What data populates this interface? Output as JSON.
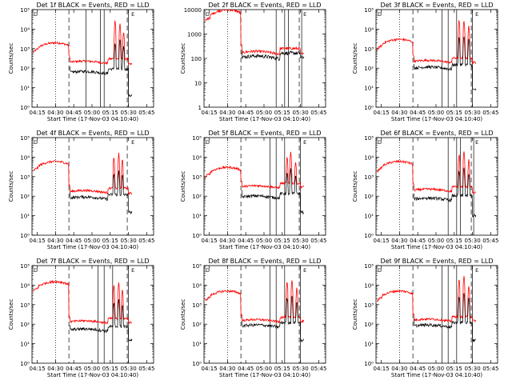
{
  "figure": {
    "series_colors": {
      "events": "#000000",
      "lld": "#ff0000"
    },
    "background": "#ffffff"
  },
  "chart_data": [
    {
      "type": "line",
      "title": "Det 1f BLACK = Events, RED = LLD",
      "xlabel": "Start Time (17-Nov-03 04:10:40)",
      "ylabel": "Counts/sec",
      "yscale": "log",
      "ylim": [
        1,
        100000
      ],
      "ytick_labels": [
        "10⁰",
        "10¹",
        "10²",
        "10³",
        "10⁴",
        "10⁵"
      ],
      "xticks": [
        "04:15",
        "04:30",
        "04:45",
        "05:00",
        "05:15",
        "05:30",
        "05:45"
      ],
      "corner_labels": [
        "D",
        "E"
      ],
      "markers": {
        "dotted": [
          "04:30"
        ],
        "dashed": [
          "04:41",
          "05:29"
        ],
        "solid": [
          "04:55",
          "05:07",
          "05:10",
          "05:30"
        ]
      },
      "events": {
        "base": 60,
        "pre_spike": null,
        "spikes": [
          {
            "t": "05:19",
            "v": 2000
          },
          {
            "t": "05:23",
            "v": 3000
          },
          {
            "t": "05:26",
            "v": 1500
          }
        ],
        "tail": 4
      },
      "lld": {
        "pre": 2000,
        "post": 200,
        "end": 160,
        "spikes": [
          {
            "t": "05:19",
            "v": 30000
          },
          {
            "t": "05:23",
            "v": 20000
          },
          {
            "t": "05:26",
            "v": 8000
          }
        ]
      }
    },
    {
      "type": "line",
      "title": "Det 2f BLACK = Events, RED = LLD",
      "xlabel": "Start Time (17-Nov-03 04:10:40)",
      "ylabel": "Counts/sec",
      "yscale": "log",
      "ylim": [
        1,
        10000
      ],
      "ytick_labels": [
        "1",
        "10",
        "100",
        "1000",
        "10000"
      ],
      "xticks": [
        "04:15",
        "04:30",
        "04:45",
        "05:00",
        "05:15",
        "05:30",
        "05:45"
      ],
      "corner_labels": [
        "D",
        "E"
      ],
      "markers": {
        "dotted": [
          "04:30"
        ],
        "dashed": [
          "04:41",
          "05:29"
        ],
        "solid": [
          "05:10",
          "05:17",
          "05:20",
          "05:31"
        ]
      },
      "events": {
        "base": 110,
        "pre_spike": null,
        "spikes": [],
        "tail": null
      },
      "lld": {
        "pre": 10000,
        "post": 170,
        "end": 150,
        "spikes": []
      }
    },
    {
      "type": "line",
      "title": "Det 3f BLACK = Events, RED = LLD",
      "xlabel": "Start Time (17-Nov-03 04:10:40)",
      "ylabel": "Counts/sec",
      "yscale": "log",
      "ylim": [
        1,
        100000
      ],
      "ytick_labels": [
        "10⁰",
        "10¹",
        "10²",
        "10³",
        "10⁴",
        "10⁵"
      ],
      "xticks": [
        "04:15",
        "04:30",
        "04:45",
        "05:00",
        "05:15",
        "05:30",
        "05:45"
      ],
      "corner_labels": [
        "D",
        "E"
      ],
      "markers": {
        "dotted": [
          "04:30"
        ],
        "dashed": [
          "04:41",
          "05:29"
        ],
        "solid": [
          "05:05",
          "05:10",
          "05:17",
          "05:30"
        ]
      },
      "events": {
        "base": 100,
        "pre_spike": null,
        "spikes": [
          {
            "t": "05:19",
            "v": 4000
          },
          {
            "t": "05:23",
            "v": 5000
          },
          {
            "t": "05:27",
            "v": 3000
          }
        ],
        "tail": 8
      },
      "lld": {
        "pre": 3000,
        "post": 220,
        "end": 200,
        "spikes": [
          {
            "t": "05:19",
            "v": 30000
          },
          {
            "t": "05:23",
            "v": 30000
          },
          {
            "t": "05:27",
            "v": 15000
          }
        ]
      }
    },
    {
      "type": "line",
      "title": "Det 4f BLACK = Events, RED = LLD",
      "xlabel": "Start Time (17-Nov-03 04:10:40)",
      "ylabel": "Counts/sec",
      "yscale": "log",
      "ylim": [
        1,
        100000
      ],
      "ytick_labels": [
        "10⁰",
        "10¹",
        "10²",
        "10³",
        "10⁴",
        "10⁵"
      ],
      "xticks": [
        "04:15",
        "04:30",
        "04:45",
        "05:00",
        "05:15",
        "05:30",
        "05:45"
      ],
      "corner_labels": [
        "D",
        "E"
      ],
      "markers": {
        "dotted": [
          "04:30"
        ],
        "dashed": [
          "04:41",
          "05:29"
        ],
        "solid": []
      },
      "events": {
        "base": 80,
        "pre_spike": null,
        "spikes": [
          {
            "t": "05:18",
            "v": 1500
          },
          {
            "t": "05:22",
            "v": 2000
          },
          {
            "t": "05:25",
            "v": 1200
          }
        ],
        "tail": 15
      },
      "lld": {
        "pre": 6000,
        "post": 170,
        "end": 140,
        "spikes": [
          {
            "t": "05:18",
            "v": 10000
          },
          {
            "t": "05:22",
            "v": 15000
          },
          {
            "t": "05:25",
            "v": 8000
          }
        ]
      }
    },
    {
      "type": "line",
      "title": "Det 5f BLACK = Events, RED = LLD",
      "xlabel": "Start Time (17-Nov-03 04:10:40)",
      "ylabel": "Counts/sec",
      "yscale": "log",
      "ylim": [
        1,
        100000
      ],
      "ytick_labels": [
        "10⁰",
        "10¹",
        "10²",
        "10³",
        "10⁴",
        "10⁵"
      ],
      "xticks": [
        "04:15",
        "04:30",
        "04:45",
        "05:00",
        "05:15",
        "05:30",
        "05:45"
      ],
      "corner_labels": [
        "D",
        "E"
      ],
      "markers": {
        "dotted": [
          "04:30"
        ],
        "dashed": [
          "04:41",
          "05:29"
        ],
        "solid": [
          "05:05",
          "05:10",
          "05:17",
          "05:30"
        ]
      },
      "events": {
        "base": 90,
        "pre_spike": null,
        "spikes": [
          {
            "t": "05:19",
            "v": 1500
          },
          {
            "t": "05:22",
            "v": 2500
          },
          {
            "t": "05:26",
            "v": 1200
          }
        ],
        "tail": 15
      },
      "lld": {
        "pre": 3000,
        "post": 300,
        "end": 300,
        "spikes": [
          {
            "t": "05:19",
            "v": 10000
          },
          {
            "t": "05:22",
            "v": 20000
          },
          {
            "t": "05:26",
            "v": 6000
          }
        ]
      }
    },
    {
      "type": "line",
      "title": "Det 6f BLACK = Events, RED = LLD",
      "xlabel": "Start Time (17-Nov-03 04:10:40)",
      "ylabel": "Counts/sec",
      "yscale": "log",
      "ylim": [
        1,
        100000
      ],
      "ytick_labels": [
        "10⁰",
        "10¹",
        "10²",
        "10³",
        "10⁴",
        "10⁵"
      ],
      "xticks": [
        "04:15",
        "04:30",
        "04:45",
        "05:00",
        "05:15",
        "05:30",
        "05:45"
      ],
      "corner_labels": [
        "D",
        "E"
      ],
      "markers": {
        "dotted": [
          "04:30"
        ],
        "dashed": [
          "04:41",
          "05:29"
        ],
        "solid": [
          "05:10",
          "05:17",
          "05:20",
          "05:31"
        ]
      },
      "events": {
        "base": 70,
        "pre_spike": null,
        "spikes": [
          {
            "t": "05:19",
            "v": 2000
          },
          {
            "t": "05:23",
            "v": 3000
          },
          {
            "t": "05:27",
            "v": 1500
          }
        ],
        "tail": 10
      },
      "lld": {
        "pre": 6000,
        "post": 200,
        "end": 150,
        "spikes": [
          {
            "t": "05:19",
            "v": 15000
          },
          {
            "t": "05:23",
            "v": 20000
          },
          {
            "t": "05:27",
            "v": 8000
          }
        ]
      }
    },
    {
      "type": "line",
      "title": "Det 7f BLACK = Events, RED = LLD",
      "xlabel": "Start Time (17-Nov-03 04:10:40)",
      "ylabel": "Counts/sec",
      "yscale": "log",
      "ylim": [
        1,
        100000
      ],
      "ytick_labels": [
        "10⁰",
        "10¹",
        "10²",
        "10³",
        "10⁴",
        "10⁵"
      ],
      "xticks": [
        "04:15",
        "04:30",
        "04:45",
        "05:00",
        "05:15",
        "05:30",
        "05:45"
      ],
      "corner_labels": [
        "D",
        "E"
      ],
      "markers": {
        "dotted": [
          "04:30"
        ],
        "dashed": [
          "04:41",
          "05:29"
        ],
        "solid": [
          "05:05",
          "05:10",
          "05:17",
          "05:30"
        ]
      },
      "events": {
        "base": 50,
        "pre_spike": null,
        "spikes": [
          {
            "t": "05:18",
            "v": 1200
          },
          {
            "t": "05:22",
            "v": 2000
          },
          {
            "t": "05:25",
            "v": 1000
          }
        ],
        "tail": 15
      },
      "lld": {
        "pre": 15000,
        "post": 130,
        "end": 120,
        "spikes": [
          {
            "t": "05:18",
            "v": 10000
          },
          {
            "t": "05:22",
            "v": 15000
          },
          {
            "t": "05:25",
            "v": 6000
          }
        ]
      }
    },
    {
      "type": "line",
      "title": "Det 8f BLACK = Events, RED = LLD",
      "xlabel": "Start Time (17-Nov-03 04:10:40)",
      "ylabel": "Counts/sec",
      "yscale": "log",
      "ylim": [
        1,
        100000
      ],
      "ytick_labels": [
        "10⁰",
        "10¹",
        "10²",
        "10³",
        "10⁴",
        "10⁵"
      ],
      "xticks": [
        "04:15",
        "04:30",
        "04:45",
        "05:00",
        "05:15",
        "05:30",
        "05:45"
      ],
      "corner_labels": [
        "D",
        "E"
      ],
      "markers": {
        "dotted": [
          "04:30"
        ],
        "dashed": [
          "04:41",
          "05:29"
        ],
        "solid": [
          "05:05",
          "05:10",
          "05:17",
          "05:30"
        ]
      },
      "events": {
        "base": 80,
        "pre_spike": null,
        "spikes": [
          {
            "t": "05:19",
            "v": 2500
          },
          {
            "t": "05:23",
            "v": 3000
          },
          {
            "t": "05:27",
            "v": 1500
          }
        ],
        "tail": 15
      },
      "lld": {
        "pre": 5000,
        "post": 150,
        "end": 140,
        "spikes": [
          {
            "t": "05:19",
            "v": 15000
          },
          {
            "t": "05:23",
            "v": 20000
          },
          {
            "t": "05:27",
            "v": 8000
          }
        ]
      }
    },
    {
      "type": "line",
      "title": "Det 9f BLACK = Events, RED = LLD",
      "xlabel": "Start Time (17-Nov-03 04:10:40)",
      "ylabel": "Counts/sec",
      "yscale": "log",
      "ylim": [
        1,
        100000
      ],
      "ytick_labels": [
        "10⁰",
        "10¹",
        "10²",
        "10³",
        "10⁴",
        "10⁵"
      ],
      "xticks": [
        "04:15",
        "04:30",
        "04:45",
        "05:00",
        "05:15",
        "05:30",
        "05:45"
      ],
      "corner_labels": [
        "D",
        "E"
      ],
      "markers": {
        "dotted": [
          "04:30"
        ],
        "dashed": [
          "04:41",
          "05:29"
        ],
        "solid": [
          "05:05",
          "05:10",
          "05:17",
          "05:30"
        ]
      },
      "events": {
        "base": 80,
        "pre_spike": null,
        "spikes": [
          {
            "t": "05:19",
            "v": 3000
          },
          {
            "t": "05:23",
            "v": 4000
          },
          {
            "t": "05:27",
            "v": 2000
          }
        ],
        "tail": 15
      },
      "lld": {
        "pre": 5000,
        "post": 160,
        "end": 150,
        "spikes": [
          {
            "t": "05:19",
            "v": 20000
          },
          {
            "t": "05:23",
            "v": 30000
          },
          {
            "t": "05:27",
            "v": 10000
          }
        ]
      }
    }
  ]
}
